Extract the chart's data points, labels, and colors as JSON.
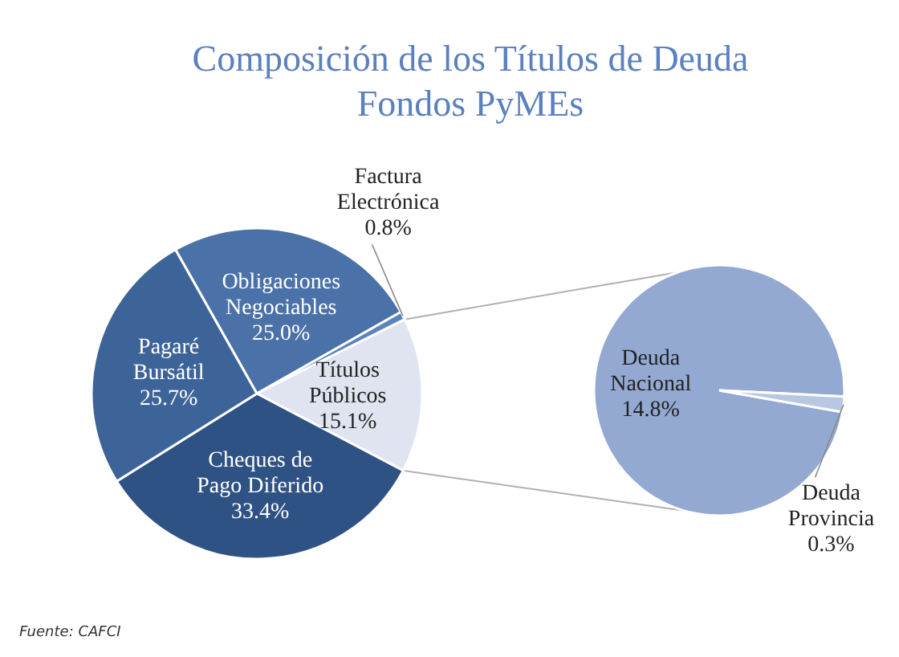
{
  "chart_data": [
    {
      "type": "pie",
      "title": "Composición de los Títulos de Deuda\nFondos PyMEs",
      "categories": [
        "Obligaciones Negociables",
        "Factura Electrónica",
        "Títulos Públicos",
        "Cheques de Pago Diferido",
        "Pagaré Bursátil"
      ],
      "values": [
        25.0,
        0.8,
        15.1,
        33.4,
        25.7
      ],
      "value_labels": [
        "25.0%",
        "0.8%",
        "15.1%",
        "33.4%",
        "25.7%"
      ],
      "colors": [
        "#4a72a8",
        "#5a84bd",
        "#dfe4f0",
        "#2f5284",
        "#3d6499"
      ],
      "annotations": [
        "Fuente:  CAFCI"
      ]
    },
    {
      "type": "pie",
      "categories": [
        "Deuda Nacional",
        "Deuda Provincia"
      ],
      "values": [
        14.8,
        0.3
      ],
      "value_labels": [
        "14.8%",
        "0.3%"
      ],
      "colors": [
        "#93a9d2",
        "#b8c7e2"
      ]
    }
  ]
}
